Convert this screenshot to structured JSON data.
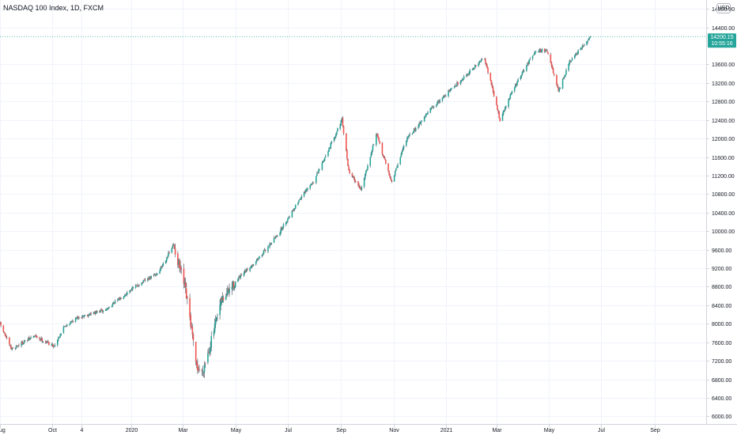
{
  "header": {
    "title": "NASDAQ 100 Index, 1D, FXCM",
    "currency": "USD"
  },
  "colors": {
    "up": "#26a69a",
    "down": "#ef5350",
    "wick": "#5d606b",
    "grid": "#f0f3fa",
    "axis": "#d1d4dc",
    "tag": "#26a69a",
    "price_line": "#26a69a",
    "text": "#131722"
  },
  "chart_data": {
    "type": "candlestick",
    "title": "NASDAQ 100 Index, 1D, FXCM",
    "currency": "USD",
    "grid": true,
    "x_ticks": [
      "Aug",
      "Oct",
      "4",
      "2020",
      "Mar",
      "May",
      "Jul",
      "Sep",
      "Nov",
      "2021",
      "Mar",
      "May",
      "Jul",
      "Sep"
    ],
    "x_tick_dates": [
      "2019-08-01",
      "2019-10-01",
      "2019-11-04",
      "2020-01-01",
      "2020-03-01",
      "2020-05-01",
      "2020-07-01",
      "2020-09-01",
      "2020-11-01",
      "2021-01-01",
      "2021-03-01",
      "2021-05-01",
      "2021-07-01",
      "2021-09-01"
    ],
    "x_range": [
      "2019-08-01",
      "2021-10-31"
    ],
    "y_ticks": [
      "14800.00",
      "14400.00",
      "13600.00",
      "13200.00",
      "12800.00",
      "12400.00",
      "12000.00",
      "11600.00",
      "11200.00",
      "10800.00",
      "10400.00",
      "10000.00",
      "9600.00",
      "9200.00",
      "8800.00",
      "8400.00",
      "8000.00",
      "7600.00",
      "7200.00",
      "6800.00",
      "6400.00",
      "6000.00"
    ],
    "y_range": [
      5820,
      14990
    ],
    "last_price": "14200.15",
    "countdown": "10:55:16",
    "path": [
      [
        "2019-08-01",
        8000
      ],
      [
        "2019-08-14",
        7450
      ],
      [
        "2019-09-10",
        7740
      ],
      [
        "2019-10-03",
        7520
      ],
      [
        "2019-10-15",
        7950
      ],
      [
        "2019-11-01",
        8150
      ],
      [
        "2019-12-02",
        8300
      ],
      [
        "2020-01-01",
        8750
      ],
      [
        "2020-02-01",
        9100
      ],
      [
        "2020-02-19",
        9700
      ],
      [
        "2020-03-03",
        8800
      ],
      [
        "2020-03-10",
        8000
      ],
      [
        "2020-03-16",
        7100
      ],
      [
        "2020-03-23",
        6950
      ],
      [
        "2020-04-01",
        7500
      ],
      [
        "2020-04-15",
        8500
      ],
      [
        "2020-05-01",
        8900
      ],
      [
        "2020-06-01",
        9500
      ],
      [
        "2020-06-22",
        10000
      ],
      [
        "2020-07-15",
        10700
      ],
      [
        "2020-08-01",
        11100
      ],
      [
        "2020-09-02",
        12400
      ],
      [
        "2020-09-10",
        11300
      ],
      [
        "2020-09-24",
        10900
      ],
      [
        "2020-10-12",
        12100
      ],
      [
        "2020-10-30",
        11050
      ],
      [
        "2020-11-15",
        11950
      ],
      [
        "2020-12-15",
        12650
      ],
      [
        "2021-01-15",
        13200
      ],
      [
        "2021-02-15",
        13750
      ],
      [
        "2021-03-05",
        12400
      ],
      [
        "2021-03-20",
        13050
      ],
      [
        "2021-04-15",
        13900
      ],
      [
        "2021-04-29",
        13900
      ],
      [
        "2021-05-12",
        13000
      ],
      [
        "2021-05-25",
        13650
      ],
      [
        "2021-06-10",
        14000
      ],
      [
        "2021-06-18",
        14200
      ]
    ]
  }
}
